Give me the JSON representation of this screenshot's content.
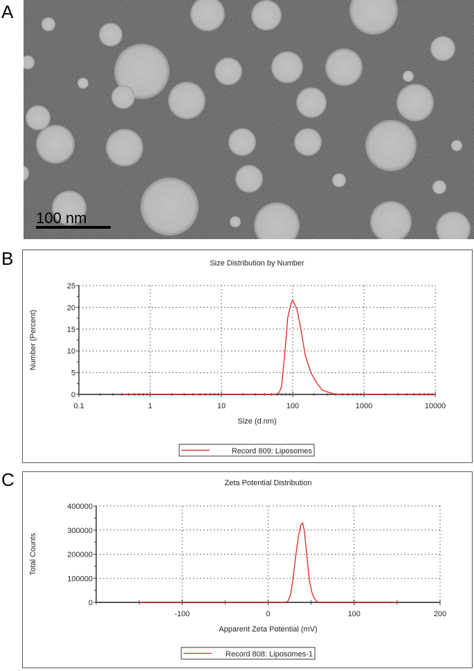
{
  "panels": {
    "a": "A",
    "b": "B",
    "c": "C"
  },
  "tem_image": {
    "scale_bar_label": "100 nm"
  },
  "chart_data": [
    {
      "type": "line",
      "title": "Size Distribution by Number",
      "xlabel": "Size (d.nm)",
      "ylabel": "Number (Percent)",
      "x_scale": "log",
      "xlim": [
        0.1,
        10000
      ],
      "ylim": [
        0,
        25
      ],
      "x_ticks": [
        "0.1",
        "1",
        "10",
        "100",
        "1000",
        "10000"
      ],
      "y_ticks": [
        "0",
        "5",
        "10",
        "15",
        "20",
        "25"
      ],
      "grid": true,
      "legend": "bottom-center",
      "series": [
        {
          "name": "Record 809: Liposomes",
          "color": "#e02020",
          "x": [
            0.4,
            60,
            65,
            70,
            78,
            85,
            95,
            100,
            115,
            130,
            150,
            180,
            220,
            260,
            330,
            400,
            10000
          ],
          "y": [
            0,
            0,
            0.5,
            2,
            10,
            17.5,
            21,
            21.7,
            19.5,
            15,
            9,
            5,
            2.5,
            1,
            0.4,
            0,
            0
          ]
        }
      ]
    },
    {
      "type": "line",
      "title": "Zeta Potential Distribution",
      "xlabel": "Apparent Zeta Potential (mV)",
      "ylabel": "Total Counts",
      "xlim": [
        -200,
        200
      ],
      "ylim": [
        0,
        400000
      ],
      "x_ticks": [
        "-100",
        "0",
        "100",
        "200"
      ],
      "y_ticks": [
        "0",
        "100000",
        "200000",
        "300000",
        "400000"
      ],
      "grid": true,
      "legend": "bottom-center",
      "series": [
        {
          "name": "Record 808: Liposomes-1",
          "color": "#e02020",
          "x": [
            -150,
            20,
            23,
            26,
            29,
            32,
            35,
            38,
            40,
            42,
            44,
            46,
            48,
            51,
            54,
            57,
            60,
            150
          ],
          "y": [
            0,
            0,
            5000,
            30000,
            100000,
            190000,
            270000,
            320000,
            330000,
            300000,
            230000,
            160000,
            90000,
            40000,
            15000,
            3000,
            0,
            0
          ]
        }
      ]
    }
  ]
}
